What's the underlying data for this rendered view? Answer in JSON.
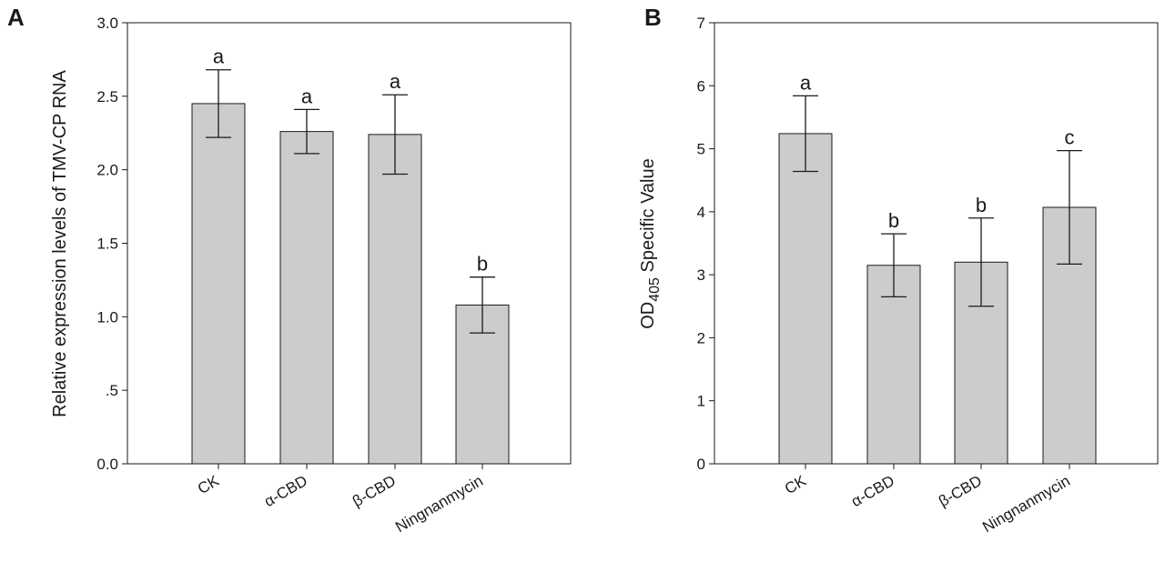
{
  "chart_data": [
    {
      "type": "bar",
      "panel_label": "A",
      "categories": [
        "CK",
        "α-CBD",
        "β-CBD",
        "Ningnanmycin"
      ],
      "values": [
        2.45,
        2.26,
        2.24,
        1.08
      ],
      "errors": [
        0.23,
        0.15,
        0.27,
        0.19
      ],
      "significance": [
        "a",
        "a",
        "a",
        "b"
      ],
      "title": "",
      "xlabel": "",
      "ylabel": "Relative expression levels of TMV-CP RNA",
      "ylim": [
        0,
        3.0
      ],
      "yticks": [
        0,
        0.5,
        1.0,
        1.5,
        2.0,
        2.5,
        3.0
      ],
      "ytick_labels": [
        "0.0",
        ".5",
        "1.0",
        "1.5",
        "2.0",
        "2.5",
        "3.0"
      ],
      "grid": false,
      "bar_color": "#cccccc"
    },
    {
      "type": "bar",
      "panel_label": "B",
      "categories": [
        "CK",
        "α-CBD",
        "β-CBD",
        "Ningnanmycin"
      ],
      "values": [
        5.24,
        3.15,
        3.2,
        4.07
      ],
      "errors": [
        0.6,
        0.5,
        0.7,
        0.9
      ],
      "significance": [
        "a",
        "b",
        "b",
        "c"
      ],
      "title": "",
      "xlabel": "",
      "ylabel_prefix": "OD",
      "ylabel_subscript": "405",
      "ylabel_suffix": " Specific Value",
      "ylim": [
        0,
        7
      ],
      "yticks": [
        0,
        1,
        2,
        3,
        4,
        5,
        6,
        7
      ],
      "ytick_labels": [
        "0",
        "1",
        "2",
        "3",
        "4",
        "5",
        "6",
        "7"
      ],
      "grid": false,
      "bar_color": "#cccccc"
    }
  ]
}
